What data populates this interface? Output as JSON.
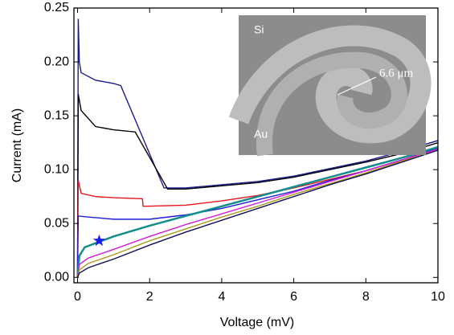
{
  "chart_data": {
    "type": "line",
    "x_label": "Voltage (mV)",
    "y_label": "Current (mA)",
    "xlim": [
      -0.1,
      10
    ],
    "xticks": [
      0,
      2,
      4,
      6,
      8,
      10
    ],
    "ylim": [
      -0.005,
      0.25
    ],
    "yticks": [
      {
        "value": 0,
        "label": "0.00"
      },
      0.05,
      {
        "value": 0.1,
        "label": "0.10"
      },
      0.15,
      {
        "value": 0.2,
        "label": "0.20"
      },
      0.25
    ],
    "series": [
      {
        "color": "#1a1a8c",
        "x": [
          0,
          0.02,
          0.05,
          0.1,
          0.5,
          1.0,
          1.2,
          2.4,
          3,
          4,
          5,
          6,
          7,
          8,
          9,
          10
        ],
        "values": [
          0,
          0.24,
          0.2,
          0.19,
          0.183,
          0.18,
          0.178,
          0.083,
          0.083,
          0.086,
          0.089,
          0.094,
          0.101,
          0.108,
          0.117,
          0.127
        ]
      },
      {
        "color": "#000000",
        "x": [
          0,
          0.02,
          0.1,
          0.5,
          1,
          1.6,
          2.5,
          3,
          4,
          5,
          6,
          7,
          8,
          9,
          10
        ],
        "values": [
          0,
          0.17,
          0.155,
          0.14,
          0.137,
          0.135,
          0.082,
          0.082,
          0.085,
          0.088,
          0.093,
          0.1,
          0.107,
          0.115,
          0.125
        ]
      },
      {
        "color": "#e8141c",
        "x": [
          0,
          0.02,
          0.1,
          0.5,
          1,
          1.8,
          1.82,
          3,
          4,
          5,
          6,
          7,
          8,
          9,
          10
        ],
        "values": [
          0,
          0.09,
          0.078,
          0.075,
          0.074,
          0.073,
          0.066,
          0.067,
          0.071,
          0.076,
          0.083,
          0.091,
          0.099,
          0.109,
          0.12
        ]
      },
      {
        "color": "#1c1cd6",
        "x": [
          0,
          0.02,
          0.3,
          1,
          2,
          3,
          4,
          5,
          6,
          7,
          8,
          9,
          10
        ],
        "values": [
          0,
          0.057,
          0.056,
          0.054,
          0.054,
          0.058,
          0.064,
          0.072,
          0.08,
          0.09,
          0.099,
          0.109,
          0.12
        ]
      },
      {
        "color": "#138c8c",
        "x": [
          0,
          0.05,
          0.2,
          0.6,
          1,
          2,
          3,
          4,
          5,
          6,
          7,
          8,
          9,
          10
        ],
        "values": [
          0,
          0.02,
          0.028,
          0.033,
          0.038,
          0.048,
          0.057,
          0.066,
          0.075,
          0.084,
          0.093,
          0.102,
          0.111,
          0.121
        ]
      },
      {
        "color": "#d61cd6",
        "x": [
          0,
          0.05,
          0.3,
          1,
          2,
          3,
          4,
          5,
          6,
          7,
          8,
          9,
          10
        ],
        "values": [
          0,
          0.012,
          0.018,
          0.026,
          0.038,
          0.049,
          0.059,
          0.069,
          0.079,
          0.089,
          0.099,
          0.109,
          0.119
        ]
      },
      {
        "color": "#a89a1c",
        "x": [
          0,
          0.05,
          0.3,
          1,
          2,
          3,
          4,
          5,
          6,
          7,
          8,
          9,
          10
        ],
        "values": [
          0,
          0.007,
          0.013,
          0.021,
          0.034,
          0.045,
          0.056,
          0.066,
          0.077,
          0.087,
          0.097,
          0.108,
          0.118
        ]
      },
      {
        "color": "#10105a",
        "x": [
          0,
          0.05,
          0.3,
          1,
          2,
          3,
          4,
          5,
          6,
          7,
          8,
          9,
          10
        ],
        "values": [
          0,
          0.004,
          0.009,
          0.017,
          0.03,
          0.042,
          0.053,
          0.064,
          0.075,
          0.086,
          0.096,
          0.107,
          0.118
        ]
      }
    ],
    "marker": {
      "x": 0.6,
      "y": 0.034,
      "color": "#1c1cf0"
    },
    "inset": {
      "label_top": "Si",
      "label_bottom": "Au",
      "scale": "6.6 μm"
    }
  }
}
